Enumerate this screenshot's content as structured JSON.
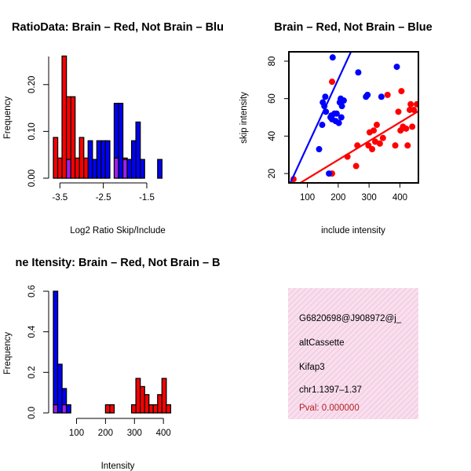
{
  "colors": {
    "brain": "#ff0000",
    "not_brain": "#0000ff",
    "overlap": "#a020f0",
    "pval": "#b22222",
    "info_bg": "#f8dfee",
    "info_hatch": "#f2bcd9"
  },
  "chart_data": [
    {
      "type": "bar",
      "title": "RatioData: Brain – Red, Not Brain – Blu",
      "xlabel": "Log2 Ratio Skip/Include",
      "ylabel": "Frequency",
      "bin_start": -3.65,
      "bin_width": 0.1,
      "xlim": [
        -3.65,
        -0.65
      ],
      "ylim": [
        0,
        0.26
      ],
      "x_ticks": [
        -3.5,
        -2.5,
        -1.5
      ],
      "x_tick_labels": [
        "-3.5",
        "-2.5",
        "-1.5"
      ],
      "y_ticks": [
        0.0,
        0.1,
        0.2
      ],
      "y_tick_labels": [
        "0.00",
        "0.10",
        "0.20"
      ],
      "series": [
        {
          "name": "Brain",
          "values": [
            0.087,
            0.043,
            0.261,
            0.174,
            0.174,
            0.043,
            0.087,
            0.043,
            0,
            0,
            0,
            0,
            0,
            0,
            0.043,
            0,
            0.043,
            0,
            0,
            0,
            0,
            0,
            0,
            0,
            0,
            0,
            0,
            0,
            0,
            0
          ]
        },
        {
          "name": "Not Brain",
          "values": [
            0,
            0,
            0,
            0.04,
            0,
            0,
            0,
            0,
            0.08,
            0.04,
            0.08,
            0.08,
            0.08,
            0,
            0.16,
            0.16,
            0.04,
            0.04,
            0.08,
            0.12,
            0.04,
            0,
            0,
            0,
            0.04,
            0,
            0,
            0,
            0,
            0
          ]
        }
      ]
    },
    {
      "type": "scatter",
      "title": "Brain – Red, Not Brain – Blue",
      "xlabel": "include intensity",
      "ylabel": "skip intensity",
      "xlim": [
        40,
        460
      ],
      "ylim": [
        15,
        85
      ],
      "x_ticks": [
        100,
        200,
        300,
        400
      ],
      "x_tick_labels": [
        "100",
        "200",
        "300",
        "400"
      ],
      "y_ticks": [
        20,
        40,
        60,
        80
      ],
      "y_tick_labels": [
        "20",
        "40",
        "60",
        "80"
      ],
      "series": [
        {
          "name": "Brain",
          "points": [
            [
              55,
              17
            ],
            [
              180,
              20
            ],
            [
              180,
              69
            ],
            [
              230,
              29
            ],
            [
              258,
              24
            ],
            [
              262,
              35
            ],
            [
              298,
              35
            ],
            [
              302,
              42
            ],
            [
              310,
              33
            ],
            [
              315,
              43
            ],
            [
              320,
              37
            ],
            [
              325,
              46
            ],
            [
              335,
              36
            ],
            [
              345,
              39
            ],
            [
              360,
              62
            ],
            [
              385,
              35
            ],
            [
              395,
              53
            ],
            [
              402,
              43
            ],
            [
              405,
              64
            ],
            [
              410,
              45
            ],
            [
              420,
              44
            ],
            [
              425,
              35
            ],
            [
              432,
              54
            ],
            [
              435,
              57
            ],
            [
              440,
              45
            ],
            [
              445,
              54
            ],
            [
              455,
              57
            ]
          ],
          "fit": {
            "intercept": 7.3,
            "slope": 0.1
          }
        },
        {
          "name": "Not Brain",
          "points": [
            [
              170,
              20
            ],
            [
              138,
              33
            ],
            [
              148,
              46
            ],
            [
              150,
              58
            ],
            [
              155,
              56
            ],
            [
              158,
              61
            ],
            [
              160,
              53
            ],
            [
              175,
              50
            ],
            [
              178,
              51
            ],
            [
              180,
              49
            ],
            [
              182,
              82
            ],
            [
              188,
              52
            ],
            [
              192,
              48
            ],
            [
              195,
              52
            ],
            [
              202,
              47
            ],
            [
              205,
              58
            ],
            [
              208,
              60
            ],
            [
              210,
              50
            ],
            [
              212,
              56
            ],
            [
              218,
              59
            ],
            [
              265,
              74
            ],
            [
              290,
              61
            ],
            [
              295,
              62
            ],
            [
              340,
              61
            ],
            [
              390,
              77
            ]
          ],
          "fit": {
            "intercept": -0.9,
            "slope": 0.356
          }
        }
      ]
    },
    {
      "type": "bar",
      "title": "ne Itensity: Brain – Red, Not Brain – B",
      "xlabel": "Intensity",
      "ylabel": "Frequency",
      "bin_start": 20,
      "bin_width": 15,
      "xlim": [
        20,
        470
      ],
      "ylim": [
        0,
        0.6
      ],
      "x_ticks": [
        100,
        200,
        300,
        400
      ],
      "x_tick_labels": [
        "100",
        "200",
        "300",
        "400"
      ],
      "y_ticks": [
        0.0,
        0.2,
        0.4,
        0.6
      ],
      "y_tick_labels": [
        "0.0",
        "0.2",
        "0.4",
        "0.6"
      ],
      "series": [
        {
          "name": "Brain",
          "values": [
            0.04,
            0,
            0.04,
            0,
            0,
            0,
            0,
            0,
            0,
            0,
            0,
            0,
            0.04,
            0.04,
            0,
            0,
            0,
            0,
            0.04,
            0.17,
            0.13,
            0.09,
            0.04,
            0.04,
            0.09,
            0.17,
            0.04,
            0,
            0,
            0
          ]
        },
        {
          "name": "Not Brain",
          "values": [
            0.6,
            0.24,
            0.12,
            0.04,
            0,
            0,
            0,
            0,
            0,
            0,
            0,
            0,
            0,
            0,
            0,
            0,
            0,
            0,
            0,
            0,
            0,
            0,
            0,
            0,
            0,
            0,
            0,
            0,
            0,
            0
          ]
        }
      ]
    }
  ],
  "info": {
    "id": "G6820698@J908972@j_",
    "event_type": "altCassette",
    "gene": "Kifap3",
    "location": "chr1.1397–1.37",
    "pval": "Pval: 0.000000"
  }
}
